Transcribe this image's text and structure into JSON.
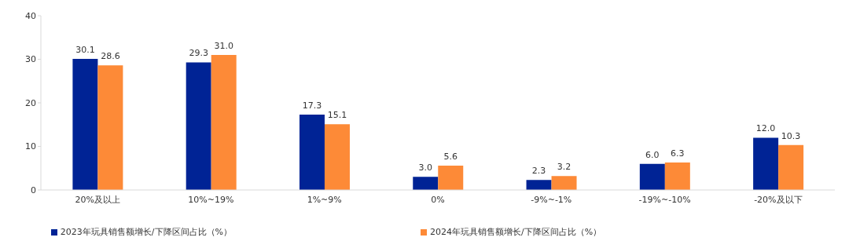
{
  "chart_data": {
    "type": "bar",
    "categories": [
      "20%及以上",
      "10%~19%",
      "1%~9%",
      "0%",
      "-9%~-1%",
      "-19%~-10%",
      "-20%及以下"
    ],
    "series": [
      {
        "name": "2023年玩具销售额增长/下降区间占比（%）",
        "color": "#002395",
        "values": [
          30.1,
          29.3,
          17.3,
          3.0,
          2.3,
          6.0,
          12.0
        ],
        "value_labels": [
          "30.1",
          "29.3",
          "17.3",
          "3.0",
          "2.3",
          "6.0",
          "12.0"
        ]
      },
      {
        "name": "2024年玩具销售额增长/下降区间占比（%）",
        "color": "#fd8a37",
        "values": [
          28.6,
          31.0,
          15.1,
          5.6,
          3.2,
          6.3,
          10.3
        ],
        "value_labels": [
          "28.6",
          "31.0",
          "15.1",
          "5.6",
          "3.2",
          "6.3",
          "10.3"
        ]
      }
    ],
    "ylim": [
      0,
      40
    ],
    "yticks": [
      0,
      10,
      20,
      30,
      40
    ],
    "legend": "bottom"
  }
}
